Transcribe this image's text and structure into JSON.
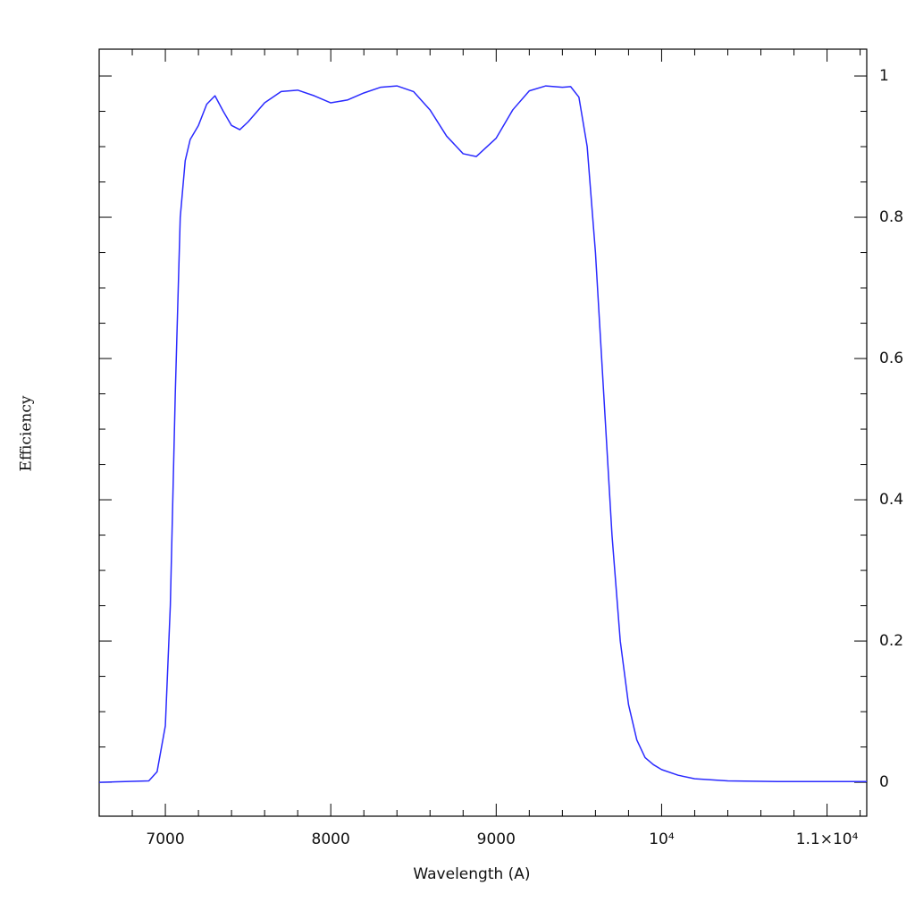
{
  "chart_data": {
    "type": "line",
    "x_label": "Wavelength (A)",
    "y_label": "Efficiency",
    "xlim": [
      6600,
      11240
    ],
    "ylim": [
      -0.048,
      1.038
    ],
    "xticks": [
      7000,
      8000,
      9000,
      {
        "value": 10000,
        "label": "10⁴"
      },
      {
        "value": 11000,
        "label": "1.1×10⁴"
      }
    ],
    "xminorticks": [
      6600,
      6800,
      7200,
      7400,
      7600,
      7800,
      8200,
      8400,
      8600,
      8800,
      9200,
      9400,
      9600,
      9800,
      10200,
      10400,
      10600,
      10800,
      11200
    ],
    "yticks": [
      0,
      0.2,
      0.4,
      0.6,
      0.8,
      1
    ],
    "yminorticks": [
      -0.05,
      0.05,
      0.1,
      0.15,
      0.25,
      0.3,
      0.35,
      0.45,
      0.5,
      0.55,
      0.65,
      0.7,
      0.75,
      0.85,
      0.9,
      0.95
    ],
    "series": [
      {
        "color": "#2a2aff",
        "x": [
          6600,
          6900,
          6950,
          7000,
          7030,
          7060,
          7090,
          7120,
          7150,
          7200,
          7250,
          7300,
          7350,
          7400,
          7450,
          7500,
          7600,
          7700,
          7800,
          7900,
          8000,
          8100,
          8200,
          8300,
          8400,
          8500,
          8600,
          8700,
          8800,
          8880,
          9000,
          9100,
          9200,
          9300,
          9400,
          9450,
          9500,
          9550,
          9600,
          9650,
          9700,
          9750,
          9800,
          9850,
          9900,
          9950,
          10000,
          10100,
          10200,
          10400,
          10700,
          11240
        ],
        "values": [
          0,
          0.002,
          0.015,
          0.08,
          0.25,
          0.55,
          0.8,
          0.88,
          0.91,
          0.93,
          0.96,
          0.972,
          0.95,
          0.93,
          0.924,
          0.935,
          0.962,
          0.978,
          0.98,
          0.972,
          0.962,
          0.966,
          0.976,
          0.984,
          0.986,
          0.978,
          0.952,
          0.915,
          0.89,
          0.886,
          0.912,
          0.952,
          0.979,
          0.986,
          0.984,
          0.985,
          0.97,
          0.9,
          0.75,
          0.55,
          0.35,
          0.2,
          0.11,
          0.06,
          0.035,
          0.025,
          0.018,
          0.01,
          0.005,
          0.002,
          0.001,
          0.001
        ]
      }
    ]
  }
}
